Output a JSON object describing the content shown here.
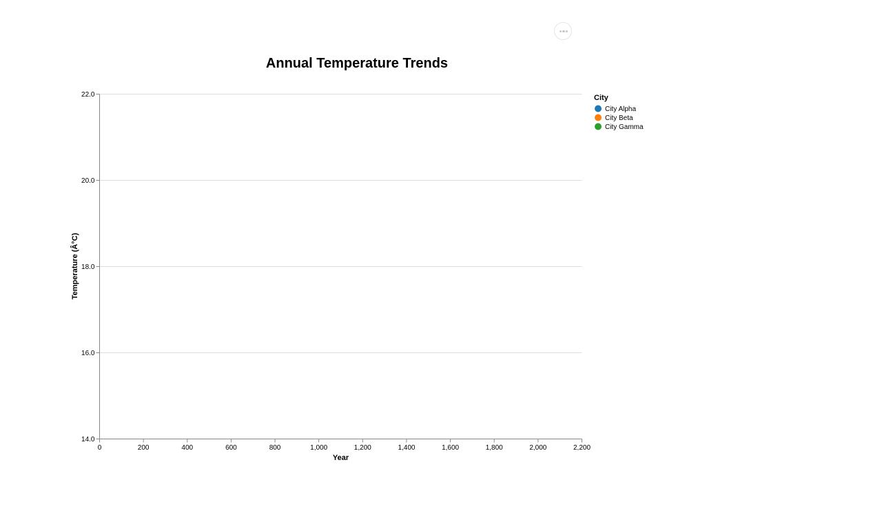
{
  "menu": {
    "icon": "ellipsis-icon"
  },
  "chart_data": {
    "type": "line",
    "title": "Annual Temperature Trends",
    "xlabel": "Year",
    "ylabel": "Temperature (Â°C)",
    "xlim": [
      0,
      2200
    ],
    "ylim": [
      14.0,
      22.0
    ],
    "x_ticks": [
      "0",
      "200",
      "400",
      "600",
      "800",
      "1,000",
      "1,200",
      "1,400",
      "1,600",
      "1,800",
      "2,000",
      "2,200"
    ],
    "y_ticks": [
      "14.0",
      "16.0",
      "18.0",
      "20.0",
      "22.0"
    ],
    "grid": true,
    "legend": {
      "title": "City",
      "position": "right",
      "entries": [
        {
          "name": "City Alpha",
          "color": "#1f77b4"
        },
        {
          "name": "City Beta",
          "color": "#ff7f0e"
        },
        {
          "name": "City Gamma",
          "color": "#2ca02c"
        }
      ]
    },
    "series": [
      {
        "name": "City Alpha",
        "color": "#1f77b4",
        "values": []
      },
      {
        "name": "City Beta",
        "color": "#ff7f0e",
        "values": []
      },
      {
        "name": "City Gamma",
        "color": "#2ca02c",
        "values": []
      }
    ]
  }
}
